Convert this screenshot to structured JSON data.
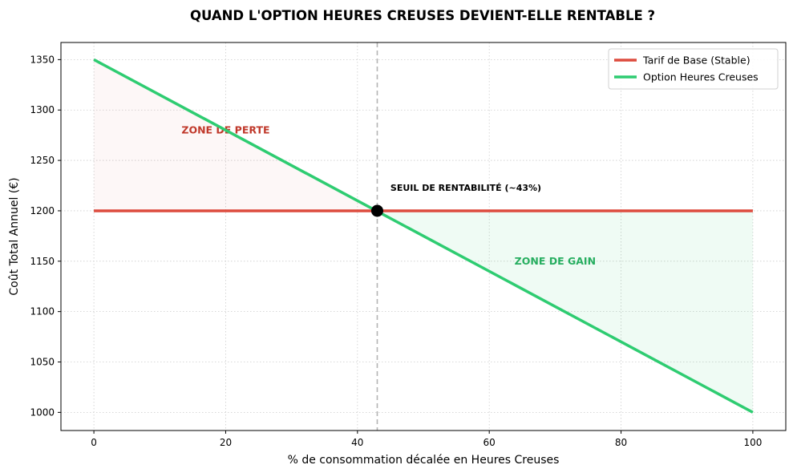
{
  "chart_data": {
    "type": "line",
    "title": "QUAND L'OPTION HEURES CREUSES DEVIENT-ELLE RENTABLE ?",
    "xlabel": "% de consommation décalée en Heures Creuses",
    "ylabel": "Coût Total Annuel (€)",
    "xlim": [
      -5,
      105
    ],
    "ylim": [
      982,
      1367
    ],
    "x_ticks": [
      0,
      20,
      40,
      60,
      80,
      100
    ],
    "y_ticks": [
      1000,
      1050,
      1100,
      1150,
      1200,
      1250,
      1300,
      1350
    ],
    "grid": true,
    "legend_position": "top-right",
    "series": [
      {
        "name": "Tarif de Base (Stable)",
        "color": "#dd4b3e",
        "x": [
          0,
          100
        ],
        "y": [
          1200,
          1200
        ]
      },
      {
        "name": "Option Heures Creuses",
        "color": "#2ecc71",
        "x": [
          0,
          100
        ],
        "y": [
          1350,
          1000
        ]
      }
    ],
    "breakeven": {
      "x": 43,
      "y": 1200,
      "label": "SEUIL DE RENTABILITÉ (~43%)"
    },
    "zones": [
      {
        "label": "ZONE DE PERTE",
        "color": "#c0392b",
        "fill": "#c0392b",
        "label_x": 20,
        "label_y": 1280
      },
      {
        "label": "ZONE DE GAIN",
        "color": "#27ae60",
        "fill": "#2ecc71",
        "label_x": 70,
        "label_y": 1150
      }
    ]
  }
}
